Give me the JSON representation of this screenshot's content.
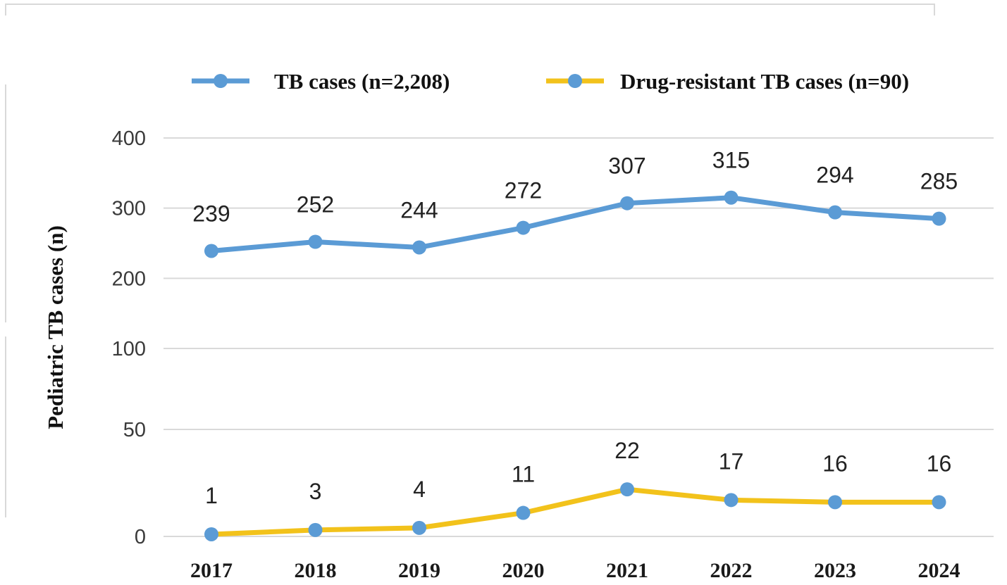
{
  "colors": {
    "tb": "#5b9bd5",
    "dr": "#f2c21b",
    "marker": "#5b9bd5",
    "grid": "#d9d9d9"
  },
  "chart_data": {
    "type": "line",
    "title": "",
    "xlabel": "",
    "ylabel": "Pediatric TB cases (n)",
    "y_axis_type": "broken",
    "y_ticks": [
      0,
      50,
      100,
      200,
      300,
      400
    ],
    "ylim": [
      0,
      400
    ],
    "grid": true,
    "legend_position": "top",
    "categories": [
      "2017",
      "2018",
      "2019",
      "2020",
      "2021",
      "2022",
      "2023",
      "2024"
    ],
    "series": [
      {
        "key": "tb",
        "name": "TB cases (n=2,208)",
        "values": [
          239,
          252,
          244,
          272,
          307,
          315,
          294,
          285
        ]
      },
      {
        "key": "dr",
        "name": "Drug-resistant TB cases (n=90)",
        "values": [
          1,
          3,
          4,
          11,
          22,
          17,
          16,
          16
        ]
      }
    ]
  }
}
